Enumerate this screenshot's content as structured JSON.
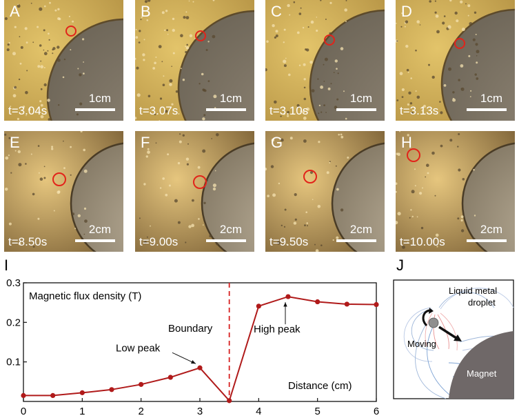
{
  "figure": {
    "panels": [
      {
        "letter": "A",
        "time": "t=3.04s",
        "scale": "1cm"
      },
      {
        "letter": "B",
        "time": "t=3.07s",
        "scale": "1cm"
      },
      {
        "letter": "C",
        "time": "t=3.10s",
        "scale": "1cm"
      },
      {
        "letter": "D",
        "time": "t=3.13s",
        "scale": "1cm"
      },
      {
        "letter": "E",
        "time": "t=8.50s",
        "scale": "2cm"
      },
      {
        "letter": "F",
        "time": "t=9.00s",
        "scale": "2cm"
      },
      {
        "letter": "G",
        "time": "t=9.50s",
        "scale": "2cm"
      },
      {
        "letter": "H",
        "time": "t=10.00s",
        "scale": "2cm"
      }
    ],
    "colors": {
      "marker": "#e2231a",
      "series": "#b01a1a",
      "boundary": "#d62020",
      "magnet": "#6f6868"
    }
  },
  "chart_data": {
    "type": "line",
    "panel_letter": "I",
    "title": "Magnetic flux density (T)",
    "xlabel": "Distance (cm)",
    "ylabel": "",
    "xlim": [
      0,
      6
    ],
    "ylim": [
      0,
      0.3
    ],
    "xticks": [
      "0",
      "1",
      "2",
      "3",
      "4",
      "5",
      "6"
    ],
    "yticks": [
      "0.1",
      "0.2",
      "0.3"
    ],
    "x": [
      0,
      0.5,
      1,
      1.5,
      2,
      2.5,
      3,
      3.5,
      4,
      4.5,
      5,
      5.5,
      6
    ],
    "y": [
      0.015,
      0.015,
      0.022,
      0.03,
      0.043,
      0.061,
      0.085,
      0.002,
      0.241,
      0.265,
      0.252,
      0.246,
      0.245
    ],
    "boundary_x": 3.5,
    "boundary_label": "Boundary",
    "annotations": [
      {
        "text": "Low peak",
        "x": 3,
        "y": 0.085
      },
      {
        "text": "High peak",
        "x": 4.5,
        "y": 0.265
      }
    ],
    "grid": false,
    "legend": "none"
  },
  "diagram": {
    "panel_letter": "J",
    "label_droplet": "Liquid metal",
    "label_droplet2": "droplet",
    "label_moving": "Moving",
    "label_magnet": "Magnet"
  }
}
